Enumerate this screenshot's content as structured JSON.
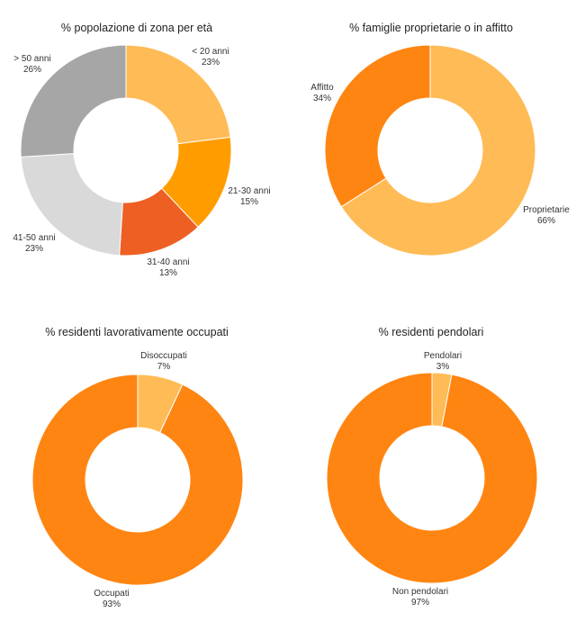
{
  "chart_data": [
    {
      "type": "pie",
      "title": "% popolazione di zona per età",
      "slices": [
        {
          "label": "< 20 anni",
          "value": 23,
          "value_label": "23%",
          "color": "#ffbb55"
        },
        {
          "label": "21-30 anni",
          "value": 15,
          "value_label": "15%",
          "color": "#ff9d00"
        },
        {
          "label": "31-40 anni",
          "value": 13,
          "value_label": "13%",
          "color": "#ee5f24"
        },
        {
          "label": "41-50 anni",
          "value": 23,
          "value_label": "23%",
          "color": "#d9d9d9"
        },
        {
          "label": "> 50 anni",
          "value": 26,
          "value_label": "26%",
          "color": "#a6a6a6"
        }
      ]
    },
    {
      "type": "pie",
      "title": "% famiglie proprietarie o in affitto",
      "slices": [
        {
          "label": "Proprietarie",
          "value": 66,
          "value_label": "66%",
          "color": "#ffbb55"
        },
        {
          "label": "Affitto",
          "value": 34,
          "value_label": "34%",
          "color": "#ff8512"
        }
      ]
    },
    {
      "type": "pie",
      "title": "% residenti lavorativamente occupati",
      "slices": [
        {
          "label": "Disoccupati",
          "value": 7,
          "value_label": "7%",
          "color": "#ffbb55"
        },
        {
          "label": "Occupati",
          "value": 93,
          "value_label": "93%",
          "color": "#ff8512"
        }
      ]
    },
    {
      "type": "pie",
      "title": "% residenti pendolari",
      "slices": [
        {
          "label": "Pendolari",
          "value": 3,
          "value_label": "3%",
          "color": "#ffbb55"
        },
        {
          "label": "Non pendolari",
          "value": 97,
          "value_label": "97%",
          "color": "#ff8512"
        }
      ]
    }
  ]
}
